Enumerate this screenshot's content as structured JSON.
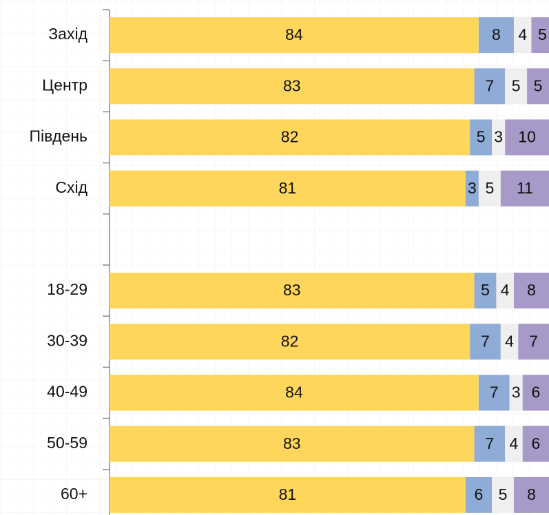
{
  "chart_data": {
    "type": "stacked-barh",
    "categories": [
      "Захід",
      "Центр",
      "Південь",
      "Схід",
      null,
      "18-29",
      "30-39",
      "40-49",
      "50-59",
      "60+"
    ],
    "series": [
      {
        "color": "#FFD65C",
        "values": [
          84,
          83,
          82,
          81,
          null,
          83,
          82,
          84,
          83,
          81
        ]
      },
      {
        "color": "#8EACD6",
        "values": [
          8,
          7,
          5,
          3,
          null,
          5,
          7,
          7,
          7,
          6
        ]
      },
      {
        "color": "#EFEFEF",
        "values": [
          4,
          5,
          3,
          5,
          null,
          4,
          4,
          3,
          4,
          5
        ]
      },
      {
        "color": "#A89AC8",
        "values": [
          5,
          5,
          10,
          11,
          null,
          8,
          7,
          6,
          6,
          8
        ]
      }
    ],
    "xlim": [
      0,
      100
    ]
  }
}
